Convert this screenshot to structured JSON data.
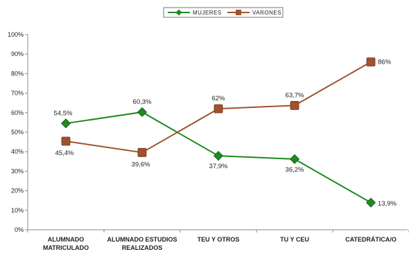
{
  "chart_data": {
    "type": "line",
    "categories": [
      [
        "ALUMNADO",
        "MATRICULADO"
      ],
      [
        "ALUMNADO ESTUDIOS",
        "REALIZADOS"
      ],
      [
        "TEU Y OTROS"
      ],
      [
        "TU Y CEU"
      ],
      [
        "CATEDRÁTICA/O"
      ]
    ],
    "y_ticks": [
      "0%",
      "10%",
      "20%",
      "30%",
      "40%",
      "50%",
      "60%",
      "70%",
      "80%",
      "90%",
      "100%"
    ],
    "ylim": [
      0,
      100
    ],
    "grid": false,
    "legend_position": "top-center",
    "series": [
      {
        "name": "MUJERES",
        "color": "#1f8a1f",
        "marker": "diamond",
        "values": [
          54.5,
          60.3,
          37.9,
          36.2,
          13.9
        ],
        "labels": [
          "54,5%",
          "60,3%",
          "37,9%",
          "36,2%",
          "13,9%"
        ]
      },
      {
        "name": "VARONES",
        "color": "#a0522d",
        "marker": "square",
        "values": [
          45.4,
          39.6,
          62,
          63.7,
          86
        ],
        "labels": [
          "45,4%",
          "39,6%",
          "62%",
          "63,7%",
          "86%"
        ]
      }
    ]
  }
}
